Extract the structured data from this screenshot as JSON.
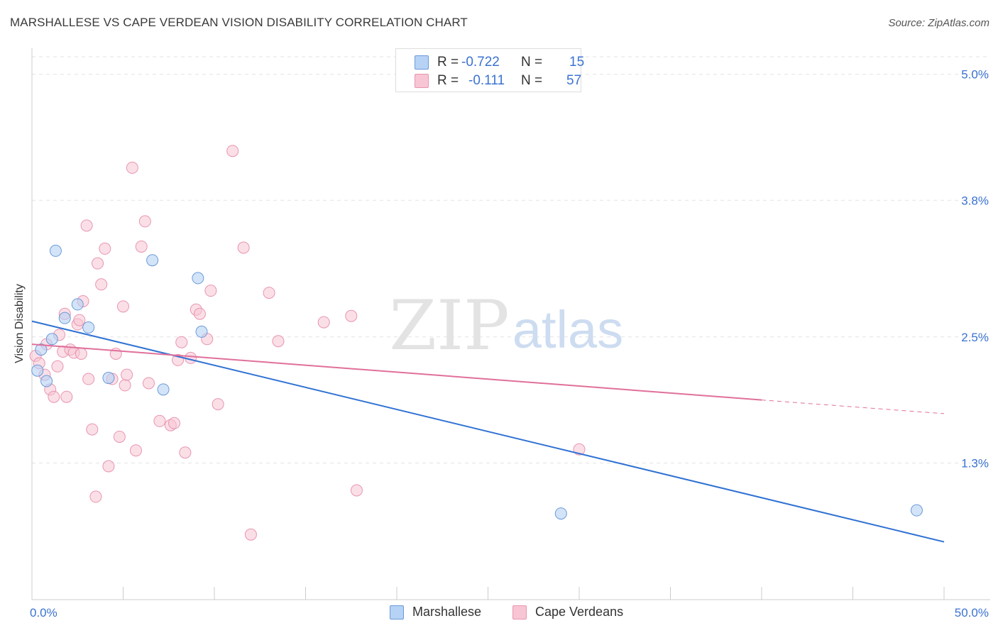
{
  "title": "MARSHALLESE VS CAPE VERDEAN VISION DISABILITY CORRELATION CHART",
  "source": "Source: ZipAtlas.com",
  "watermark": {
    "zip": "ZIP",
    "atlas": "atlas"
  },
  "legend": {
    "rows": [
      {
        "r_label": "R =",
        "r_value": "-0.722",
        "n_label": "N =",
        "n_value": "15"
      },
      {
        "r_label": "R =",
        "r_value": "-0.111",
        "n_label": "N =",
        "n_value": "57"
      }
    ]
  },
  "colors": {
    "marshallese_fill": "#b6d2f5",
    "marshallese_stroke": "#6b9ad8",
    "marshallese_line": "#3072d3",
    "capeverdean_fill": "#f8c5d4",
    "capeverdean_stroke": "#e895b0",
    "capeverdean_line": "#e0709a",
    "axis_label": "#3b73d1",
    "grid": "#e3e3e3"
  },
  "chart_data": {
    "type": "scatter",
    "title": "MARSHALLESE VS CAPE VERDEAN VISION DISABILITY CORRELATION CHART",
    "xlabel": "",
    "ylabel": "Vision Disability",
    "xlim": [
      0,
      50
    ],
    "ylim": [
      0,
      5.2
    ],
    "x_tick_labels": [
      "0.0%",
      "50.0%"
    ],
    "y_ticks": [
      1.3,
      2.5,
      3.8,
      5.0
    ],
    "y_tick_labels": [
      "1.3%",
      "2.5%",
      "3.8%",
      "5.0%"
    ],
    "series": [
      {
        "name": "Marshallese",
        "x": [
          0.3,
          0.8,
          1.1,
          1.8,
          1.3,
          2.5,
          3.1,
          4.2,
          6.6,
          7.2,
          9.1,
          9.3,
          29.0,
          48.5,
          0.5
        ],
        "y": [
          2.18,
          2.08,
          2.48,
          2.68,
          3.32,
          2.81,
          2.59,
          2.11,
          3.23,
          2.0,
          3.06,
          2.55,
          0.82,
          0.85,
          2.38
        ],
        "trend": {
          "x": [
            0,
            50
          ],
          "y": [
            2.65,
            0.55
          ]
        }
      },
      {
        "name": "Cape Verdeans",
        "x": [
          0.2,
          0.4,
          0.7,
          0.8,
          1.0,
          1.2,
          1.4,
          1.5,
          1.7,
          1.8,
          1.9,
          2.1,
          2.3,
          2.5,
          2.6,
          2.7,
          2.8,
          3.0,
          3.1,
          3.3,
          3.5,
          3.6,
          3.8,
          4.0,
          4.2,
          4.4,
          4.6,
          4.8,
          5.0,
          5.1,
          5.2,
          5.5,
          5.7,
          6.0,
          6.2,
          6.4,
          7.0,
          7.6,
          7.8,
          8.0,
          8.2,
          8.4,
          8.7,
          9.0,
          9.2,
          9.6,
          9.8,
          10.2,
          11.0,
          11.6,
          12.0,
          13.0,
          13.5,
          16.0,
          17.5,
          17.8,
          30.0
        ],
        "y": [
          2.32,
          2.25,
          2.14,
          2.43,
          2.0,
          1.93,
          2.22,
          2.52,
          2.36,
          2.72,
          1.93,
          2.38,
          2.35,
          2.62,
          2.66,
          2.34,
          2.84,
          3.56,
          2.1,
          1.62,
          0.98,
          3.2,
          3.0,
          3.34,
          1.27,
          2.1,
          2.34,
          1.55,
          2.79,
          2.04,
          2.14,
          4.11,
          1.42,
          3.36,
          3.6,
          2.06,
          1.7,
          1.66,
          1.68,
          2.28,
          2.45,
          1.4,
          2.3,
          2.76,
          2.72,
          2.48,
          2.94,
          1.86,
          4.27,
          3.35,
          0.62,
          2.92,
          2.46,
          2.64,
          2.7,
          1.04,
          1.43
        ],
        "trend": {
          "x": [
            0,
            40
          ],
          "y": [
            2.43,
            1.9
          ]
        },
        "trend_extension": {
          "x": [
            40,
            50
          ],
          "y": [
            1.9,
            1.77
          ]
        }
      }
    ],
    "legend_position": "top-center"
  },
  "bottom_legend": [
    {
      "label": "Marshallese"
    },
    {
      "label": "Cape Verdeans"
    }
  ]
}
